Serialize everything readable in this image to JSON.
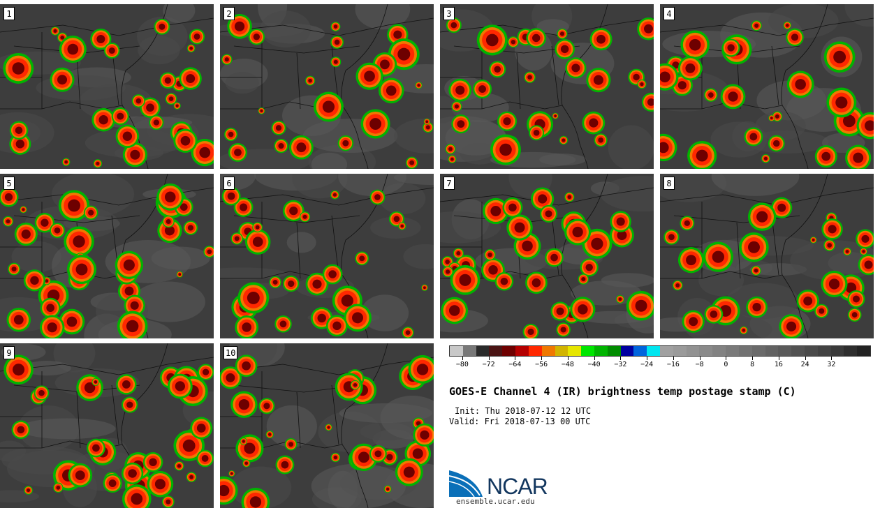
{
  "panels": [
    {
      "label": "1"
    },
    {
      "label": "2"
    },
    {
      "label": "3"
    },
    {
      "label": "4"
    },
    {
      "label": "5"
    },
    {
      "label": "6"
    },
    {
      "label": "7"
    },
    {
      "label": "8"
    },
    {
      "label": "9"
    },
    {
      "label": "10"
    }
  ],
  "colorbar": {
    "colors": [
      "#c8c8c8",
      "#787878",
      "#2a2a2a",
      "#4a1414",
      "#6e0000",
      "#b40000",
      "#ff2800",
      "#f07800",
      "#d2b400",
      "#e6e600",
      "#00e600",
      "#00b400",
      "#008c00",
      "#0000a0",
      "#0064dc",
      "#00e6f0",
      "#a0a0a0",
      "#9a9a9a",
      "#929292",
      "#8a8a8a",
      "#828282",
      "#7a7a7a",
      "#727272",
      "#6a6a6a",
      "#626262",
      "#5a5a5a",
      "#525252",
      "#4a4a4a",
      "#424242",
      "#3a3a3a",
      "#2e2e2e",
      "#222222"
    ],
    "ticks": [
      "−80",
      "−72",
      "−64",
      "−56",
      "−48",
      "−40",
      "−32",
      "−24",
      "−16",
      "−8",
      "0",
      "8",
      "16",
      "24",
      "32"
    ]
  },
  "title": "GOES-E Channel 4 (IR) brightness temp postage stamp (C)",
  "init": "Init: Thu 2018-07-12 12 UTC",
  "valid": "Valid: Fri 2018-07-13 00 UTC",
  "logo": {
    "word": "NCAR",
    "url": "ensemble.ucar.edu"
  }
}
